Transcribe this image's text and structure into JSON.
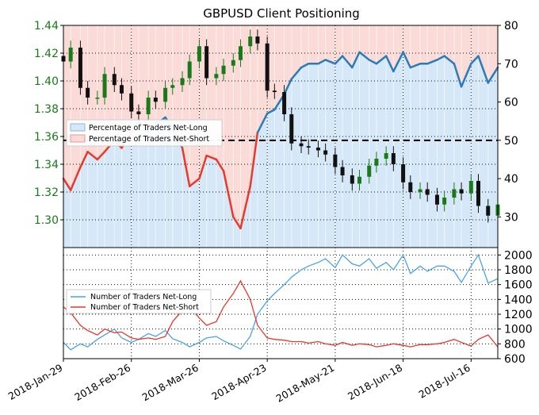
{
  "chart_data": [
    {
      "type": "line",
      "panel": "price-and-positioning",
      "title": "GBPUSD Client Positioning",
      "xlabel": "",
      "ylabel_left": "",
      "ylabel_right": "",
      "x_tick_labels": [
        "2018-Jan-29",
        "2018-Feb-26",
        "2018-Mar-26",
        "2018-Apr-23",
        "2018-May-21",
        "2018-Jun-18",
        "2018-Jul-16"
      ],
      "x_range": [
        "2018-01-29",
        "2018-07-27"
      ],
      "ylim_left": [
        1.28,
        1.44
      ],
      "y_ticks_left": [
        "1.30",
        "1.32",
        "1.34",
        "1.36",
        "1.38",
        "1.40",
        "1.42",
        "1.44"
      ],
      "ylim_right": [
        22,
        80
      ],
      "y_ticks_right": [
        "30",
        "40",
        "50",
        "60",
        "70",
        "80"
      ],
      "reference_line": {
        "value": 50,
        "axis": "right",
        "style": "dashed"
      },
      "grid": true,
      "legend_position": "center-left",
      "colors": {
        "net_long": "#2c7bb6",
        "net_short": "#e8392c",
        "net_long_fill": "#d6e8f7",
        "net_short_fill": "#fadbd8",
        "candle_up": "#1a7a1a",
        "candle_down": "#111111",
        "axis_left_text": "#1a7a1a"
      },
      "series": [
        {
          "name": "Percentage of Traders Net-Long",
          "axis": "right",
          "x": [
            "2018-01-29",
            "2018-02-01",
            "2018-02-05",
            "2018-02-08",
            "2018-02-12",
            "2018-02-15",
            "2018-02-19",
            "2018-02-22",
            "2018-02-26",
            "2018-03-01",
            "2018-03-05",
            "2018-03-08",
            "2018-03-12",
            "2018-03-15",
            "2018-03-19",
            "2018-03-22",
            "2018-03-26",
            "2018-03-29",
            "2018-04-02",
            "2018-04-05",
            "2018-04-09",
            "2018-04-12",
            "2018-04-16",
            "2018-04-19",
            "2018-04-23",
            "2018-04-26",
            "2018-04-30",
            "2018-05-03",
            "2018-05-07",
            "2018-05-10",
            "2018-05-14",
            "2018-05-17",
            "2018-05-21",
            "2018-05-24",
            "2018-05-28",
            "2018-05-31",
            "2018-06-04",
            "2018-06-07",
            "2018-06-11",
            "2018-06-14",
            "2018-06-18",
            "2018-06-21",
            "2018-06-25",
            "2018-06-28",
            "2018-07-02",
            "2018-07-05",
            "2018-07-09",
            "2018-07-12",
            "2018-07-16",
            "2018-07-19",
            "2018-07-23",
            "2018-07-27"
          ],
          "values": [
            40,
            37,
            43,
            47,
            45,
            47,
            50,
            48,
            52,
            55,
            52,
            54,
            56,
            53,
            48,
            38,
            40,
            46,
            45,
            42,
            30,
            27,
            38,
            52,
            57,
            58,
            62,
            66,
            69,
            70,
            70,
            71,
            70,
            72,
            69,
            73,
            71,
            70,
            72,
            68,
            73,
            69,
            70,
            70,
            71,
            72,
            70,
            64,
            70,
            72,
            65,
            69
          ]
        },
        {
          "name": "Percentage of Traders Net-Short",
          "axis": "right",
          "values_note_equals_100_minus_net_long": true
        },
        {
          "name": "GBPUSD",
          "type": "candlestick",
          "axis": "left",
          "x": [
            "2018-01-29",
            "2018-02-01",
            "2018-02-05",
            "2018-02-08",
            "2018-02-12",
            "2018-02-15",
            "2018-02-19",
            "2018-02-22",
            "2018-02-26",
            "2018-03-01",
            "2018-03-05",
            "2018-03-08",
            "2018-03-12",
            "2018-03-15",
            "2018-03-19",
            "2018-03-22",
            "2018-03-26",
            "2018-03-29",
            "2018-04-02",
            "2018-04-05",
            "2018-04-09",
            "2018-04-12",
            "2018-04-16",
            "2018-04-19",
            "2018-04-23",
            "2018-04-26",
            "2018-04-30",
            "2018-05-03",
            "2018-05-07",
            "2018-05-10",
            "2018-05-14",
            "2018-05-17",
            "2018-05-21",
            "2018-05-24",
            "2018-05-28",
            "2018-05-31",
            "2018-06-04",
            "2018-06-07",
            "2018-06-11",
            "2018-06-14",
            "2018-06-18",
            "2018-06-21",
            "2018-06-25",
            "2018-06-28",
            "2018-07-02",
            "2018-07-05",
            "2018-07-09",
            "2018-07-12",
            "2018-07-16",
            "2018-07-19",
            "2018-07-23",
            "2018-07-27"
          ],
          "close": [
            1.414,
            1.424,
            1.395,
            1.388,
            1.388,
            1.405,
            1.397,
            1.391,
            1.378,
            1.376,
            1.388,
            1.385,
            1.395,
            1.397,
            1.402,
            1.414,
            1.425,
            1.402,
            1.405,
            1.411,
            1.415,
            1.425,
            1.432,
            1.427,
            1.393,
            1.392,
            1.376,
            1.355,
            1.353,
            1.352,
            1.35,
            1.347,
            1.338,
            1.332,
            1.326,
            1.331,
            1.339,
            1.344,
            1.348,
            1.34,
            1.327,
            1.32,
            1.322,
            1.318,
            1.311,
            1.316,
            1.322,
            1.319,
            1.328,
            1.31,
            1.303,
            1.311
          ]
        }
      ]
    },
    {
      "type": "line",
      "panel": "trader-counts",
      "title": "",
      "x_tick_labels": [
        "2018-Jan-29",
        "2018-Feb-26",
        "2018-Mar-26",
        "2018-Apr-23",
        "2018-May-21",
        "2018-Jun-18",
        "2018-Jul-16"
      ],
      "ylim": [
        600,
        2100
      ],
      "y_ticks": [
        "600",
        "800",
        "1000",
        "1200",
        "1400",
        "1600",
        "1800",
        "2000"
      ],
      "grid": true,
      "legend_position": "center-left",
      "series": [
        {
          "name": "Number of Traders Net-Long",
          "x": [
            "2018-01-29",
            "2018-02-01",
            "2018-02-05",
            "2018-02-08",
            "2018-02-12",
            "2018-02-15",
            "2018-02-19",
            "2018-02-22",
            "2018-02-26",
            "2018-03-01",
            "2018-03-05",
            "2018-03-08",
            "2018-03-12",
            "2018-03-15",
            "2018-03-19",
            "2018-03-22",
            "2018-03-26",
            "2018-03-29",
            "2018-04-02",
            "2018-04-05",
            "2018-04-09",
            "2018-04-12",
            "2018-04-16",
            "2018-04-19",
            "2018-04-23",
            "2018-04-26",
            "2018-04-30",
            "2018-05-03",
            "2018-05-07",
            "2018-05-10",
            "2018-05-14",
            "2018-05-17",
            "2018-05-21",
            "2018-05-24",
            "2018-05-28",
            "2018-05-31",
            "2018-06-04",
            "2018-06-07",
            "2018-06-11",
            "2018-06-14",
            "2018-06-18",
            "2018-06-21",
            "2018-06-25",
            "2018-06-28",
            "2018-07-02",
            "2018-07-05",
            "2018-07-09",
            "2018-07-12",
            "2018-07-16",
            "2018-07-19",
            "2018-07-23",
            "2018-07-27"
          ],
          "values": [
            820,
            720,
            800,
            760,
            860,
            920,
            1000,
            880,
            820,
            860,
            940,
            900,
            980,
            870,
            820,
            760,
            820,
            880,
            900,
            840,
            780,
            730,
            900,
            1200,
            1380,
            1480,
            1600,
            1700,
            1800,
            1850,
            1900,
            1950,
            1830,
            2000,
            1880,
            1850,
            1950,
            1820,
            1900,
            1800,
            2000,
            1750,
            1850,
            1780,
            1850,
            1850,
            1780,
            1630,
            1850,
            2000,
            1620,
            1680
          ]
        },
        {
          "name": "Number of Traders Net-Short",
          "x": [
            "2018-01-29",
            "2018-02-01",
            "2018-02-05",
            "2018-02-08",
            "2018-02-12",
            "2018-02-15",
            "2018-02-19",
            "2018-02-22",
            "2018-02-26",
            "2018-03-01",
            "2018-03-05",
            "2018-03-08",
            "2018-03-12",
            "2018-03-15",
            "2018-03-19",
            "2018-03-22",
            "2018-03-26",
            "2018-03-29",
            "2018-04-02",
            "2018-04-05",
            "2018-04-09",
            "2018-04-12",
            "2018-04-16",
            "2018-04-19",
            "2018-04-23",
            "2018-04-26",
            "2018-04-30",
            "2018-05-03",
            "2018-05-07",
            "2018-05-10",
            "2018-05-14",
            "2018-05-17",
            "2018-05-21",
            "2018-05-24",
            "2018-05-28",
            "2018-05-31",
            "2018-06-04",
            "2018-06-07",
            "2018-06-11",
            "2018-06-14",
            "2018-06-18",
            "2018-06-21",
            "2018-06-25",
            "2018-06-28",
            "2018-07-02",
            "2018-07-05",
            "2018-07-09",
            "2018-07-12",
            "2018-07-16",
            "2018-07-19",
            "2018-07-23",
            "2018-07-27"
          ],
          "values": [
            1300,
            1220,
            1050,
            980,
            920,
            1000,
            950,
            960,
            880,
            860,
            880,
            860,
            900,
            1100,
            1250,
            1300,
            1150,
            1050,
            1100,
            1300,
            1480,
            1650,
            1400,
            1050,
            880,
            860,
            850,
            830,
            830,
            810,
            830,
            800,
            780,
            820,
            780,
            800,
            790,
            760,
            780,
            800,
            780,
            760,
            790,
            790,
            800,
            820,
            860,
            820,
            770,
            860,
            920,
            760
          ]
        }
      ]
    }
  ]
}
